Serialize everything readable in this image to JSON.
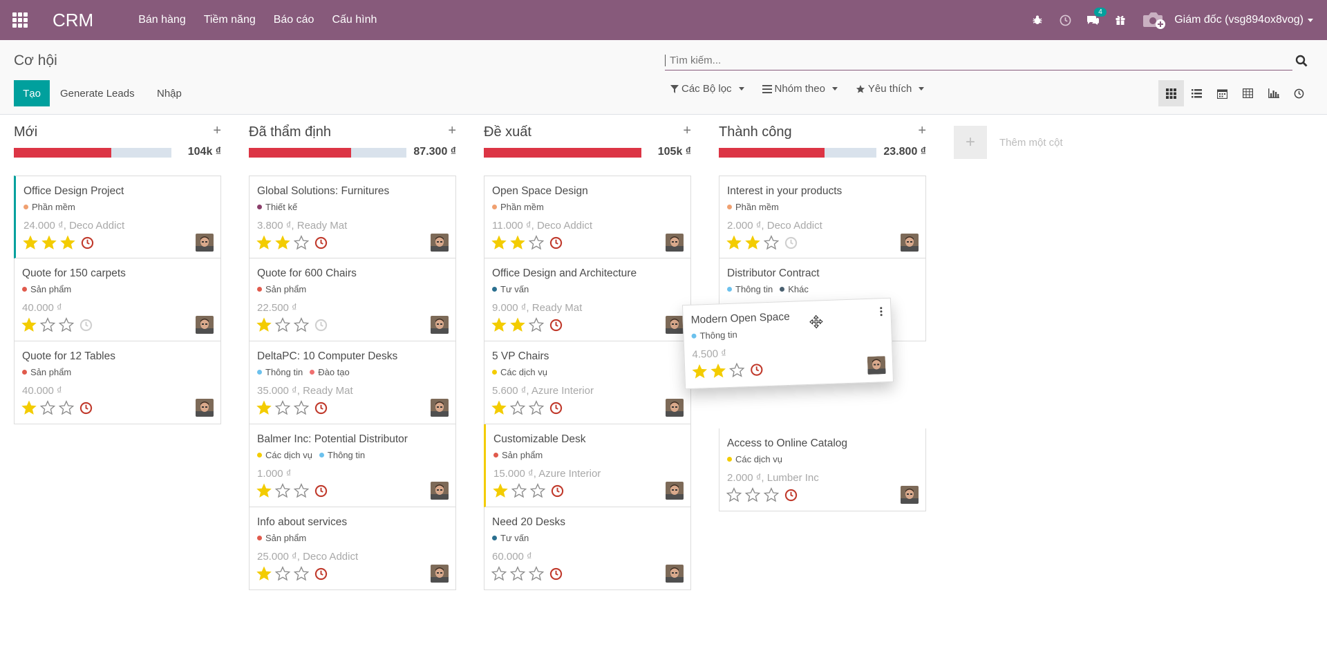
{
  "app": {
    "title": "CRM",
    "menu": [
      "Bán hàng",
      "Tiềm năng",
      "Báo cáo",
      "Cấu hình"
    ],
    "user": "Giám đốc (vsg894ox8vog)",
    "message_count": "4"
  },
  "control": {
    "breadcrumb": "Cơ hội",
    "create_label": "Tạo",
    "generate_label": "Generate Leads",
    "import_label": "Nhập",
    "search_placeholder": "Tìm kiếm...",
    "filters_label": "Các Bộ lọc",
    "groupby_label": "Nhóm theo",
    "favorites_label": "Yêu thích"
  },
  "colors": {
    "brand": "#875a7b",
    "primary": "#00a09d",
    "progress_red": "#dc3545",
    "progress_bg": "#d9e2ec",
    "star": "#f3cc00",
    "clock_red": "#c0392b"
  },
  "columns": [
    {
      "title": "Mới",
      "total": "104k ₫",
      "progress": 0.62,
      "cards": [
        {
          "title": "Office Design Project",
          "tags": [
            {
              "name": "Phần mềm",
              "color": "#f0a070"
            }
          ],
          "amount": "24.000 ₫, Deco Addict",
          "stars": 3,
          "clock": "red",
          "accent": "teal"
        },
        {
          "title": "Quote for 150 carpets",
          "tags": [
            {
              "name": "Sản phẩm",
              "color": "#e05a4c"
            }
          ],
          "amount": "40.000 ₫",
          "stars": 1,
          "clock": "gray"
        },
        {
          "title": "Quote for 12 Tables",
          "tags": [
            {
              "name": "Sản phẩm",
              "color": "#e05a4c"
            }
          ],
          "amount": "40.000 ₫",
          "stars": 1,
          "clock": "red"
        }
      ]
    },
    {
      "title": "Đã thẩm định",
      "total": "87.300 ₫",
      "progress": 0.65,
      "cards": [
        {
          "title": "Global Solutions: Furnitures",
          "tags": [
            {
              "name": "Thiết kế",
              "color": "#8a3e6a"
            }
          ],
          "amount": "3.800 ₫, Ready Mat",
          "stars": 2,
          "clock": "red"
        },
        {
          "title": "Quote for 600 Chairs",
          "tags": [
            {
              "name": "Sản phẩm",
              "color": "#e05a4c"
            }
          ],
          "amount": "22.500 ₫",
          "stars": 1,
          "clock": "gray"
        },
        {
          "title": "DeltaPC: 10 Computer Desks",
          "tags": [
            {
              "name": "Thông tin",
              "color": "#6cc1ed"
            },
            {
              "name": "Đào tạo",
              "color": "#f07070"
            }
          ],
          "amount": "35.000 ₫, Ready Mat",
          "stars": 1,
          "clock": "red"
        },
        {
          "title": "Balmer Inc: Potential Distributor",
          "tags": [
            {
              "name": "Các dịch vụ",
              "color": "#f3cc00"
            },
            {
              "name": "Thông tin",
              "color": "#6cc1ed"
            }
          ],
          "amount": "1.000 ₫",
          "stars": 1,
          "clock": "red"
        },
        {
          "title": "Info about services",
          "tags": [
            {
              "name": "Sản phẩm",
              "color": "#e05a4c"
            }
          ],
          "amount": "25.000 ₫, Deco Addict",
          "stars": 1,
          "clock": "red"
        }
      ]
    },
    {
      "title": "Đề xuất",
      "total": "105k ₫",
      "progress": 1.0,
      "cards": [
        {
          "title": "Open Space Design",
          "tags": [
            {
              "name": "Phần mềm",
              "color": "#f0a070"
            }
          ],
          "amount": "11.000 ₫, Deco Addict",
          "stars": 2,
          "clock": "red"
        },
        {
          "title": "Office Design and Architecture",
          "tags": [
            {
              "name": "Tư vấn",
              "color": "#2a6f8f"
            }
          ],
          "amount": "9.000 ₫, Ready Mat",
          "stars": 2,
          "clock": "red"
        },
        {
          "title": "5 VP Chairs",
          "tags": [
            {
              "name": "Các dịch vụ",
              "color": "#f3cc00"
            }
          ],
          "amount": "5.600 ₫, Azure Interior",
          "stars": 1,
          "clock": "red"
        },
        {
          "title": "Customizable Desk",
          "tags": [
            {
              "name": "Sản phẩm",
              "color": "#e05a4c"
            }
          ],
          "amount": "15.000 ₫, Azure Interior",
          "stars": 1,
          "clock": "red",
          "accent": "yellow"
        },
        {
          "title": "Need 20 Desks",
          "tags": [
            {
              "name": "Tư vấn",
              "color": "#2a6f8f"
            }
          ],
          "amount": "60.000 ₫",
          "stars": 0,
          "clock": "red"
        }
      ]
    },
    {
      "title": "Thành công",
      "total": "23.800 ₫",
      "progress": 0.67,
      "cards": [
        {
          "title": "Interest in your products",
          "tags": [
            {
              "name": "Phần mềm",
              "color": "#f0a070"
            }
          ],
          "amount": "2.000 ₫, Deco Addict",
          "stars": 2,
          "clock": "gray"
        },
        {
          "title": "Distributor Contract",
          "tags": [
            {
              "name": "Thông tin",
              "color": "#6cc1ed"
            },
            {
              "name": "Khác",
              "color": "#4a6070"
            }
          ],
          "amount": "",
          "stars": 0,
          "clock": "none"
        },
        {
          "title": "",
          "tags": [],
          "amount": "",
          "stars": -1,
          "clock": "none",
          "placeholder": true
        },
        {
          "title": "Access to Online Catalog",
          "tags": [
            {
              "name": "Các dịch vụ",
              "color": "#f3cc00"
            }
          ],
          "amount": "2.000 ₫, Lumber Inc",
          "stars": 0,
          "clock": "red"
        }
      ]
    }
  ],
  "add_column_label": "Thêm một cột",
  "dragging_card": {
    "title": "Modern Open Space",
    "tags": [
      {
        "name": "Thông tin",
        "color": "#6cc1ed"
      }
    ],
    "amount": "4.500 ₫",
    "stars": 2,
    "clock": "red"
  }
}
